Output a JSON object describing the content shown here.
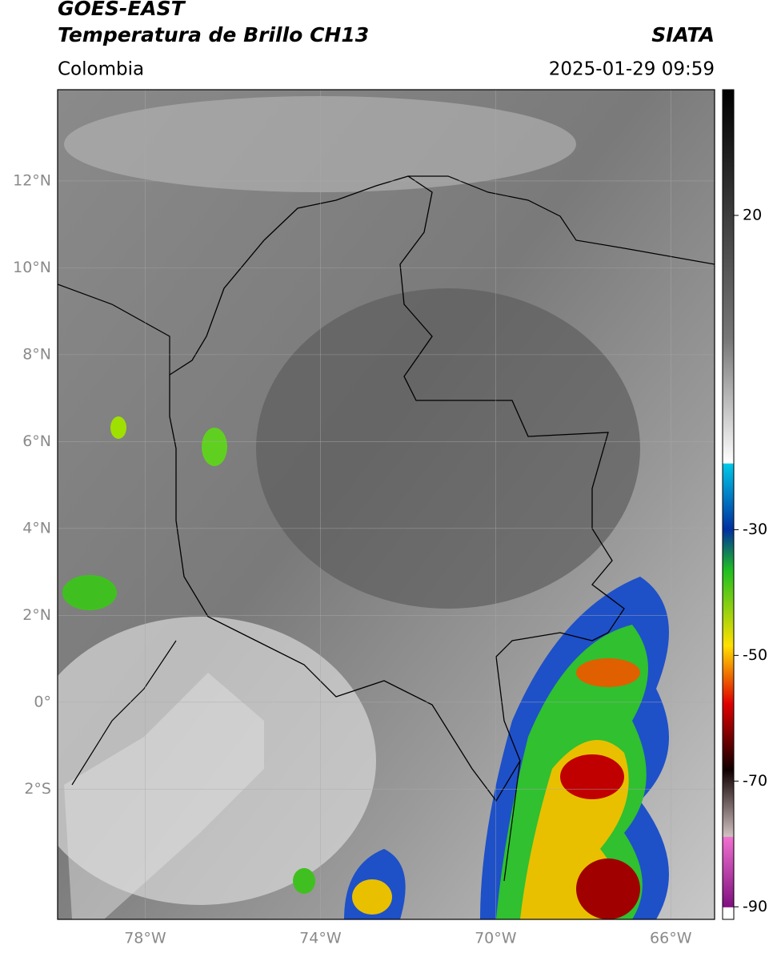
{
  "header": {
    "title": "GOES-EAST",
    "subtitle": "Temperatura de Brillo CH13",
    "agency": "SIATA",
    "region": "Colombia",
    "datetime": "2025-01-29 09:59"
  },
  "map": {
    "xlim": [
      -80,
      -65
    ],
    "ylim": [
      -5,
      14.1
    ],
    "yticks": [
      {
        "value": 12,
        "label": "12°N"
      },
      {
        "value": 10,
        "label": "10°N"
      },
      {
        "value": 8,
        "label": "8°N"
      },
      {
        "value": 6,
        "label": "6°N"
      },
      {
        "value": 4,
        "label": "4°N"
      },
      {
        "value": 2,
        "label": "2°N"
      },
      {
        "value": 0,
        "label": "0°"
      },
      {
        "value": -2,
        "label": "2°S"
      }
    ],
    "xticks": [
      {
        "value": -78,
        "label": "78°W"
      },
      {
        "value": -74,
        "label": "74°W"
      },
      {
        "value": -70,
        "label": "70°W"
      },
      {
        "value": -66,
        "label": "66°W"
      }
    ]
  },
  "colorbar": {
    "lim": [
      -92,
      40
    ],
    "ticks": [
      20,
      -30,
      -50,
      -70,
      -90
    ]
  }
}
